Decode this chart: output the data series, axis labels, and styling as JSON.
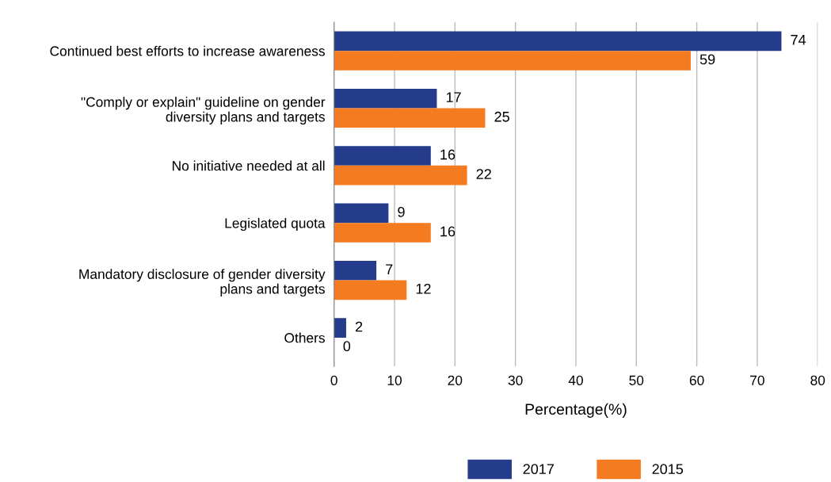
{
  "chart_data": {
    "type": "bar",
    "orientation": "horizontal",
    "xlabel": "Percentage(%)",
    "categories": [
      "Continued best efforts to increase awareness",
      "\"Comply or explain\" guideline on gender\ndiversity plans and targets",
      "No initiative needed at all",
      "Legislated quota",
      "Mandatory disclosure of gender diversity\nplans and targets",
      "Others"
    ],
    "series": [
      {
        "name": "2017",
        "color": "#253c8c",
        "values": [
          74,
          17,
          16,
          9,
          7,
          2
        ]
      },
      {
        "name": "2015",
        "color": "#f47b20",
        "values": [
          59,
          25,
          22,
          16,
          12,
          0
        ]
      }
    ],
    "xlim": [
      0,
      80
    ],
    "xticks": [
      0,
      10,
      20,
      30,
      40,
      50,
      60,
      70,
      80
    ],
    "grid": "x",
    "legend": "bottom",
    "data_labels": true
  }
}
